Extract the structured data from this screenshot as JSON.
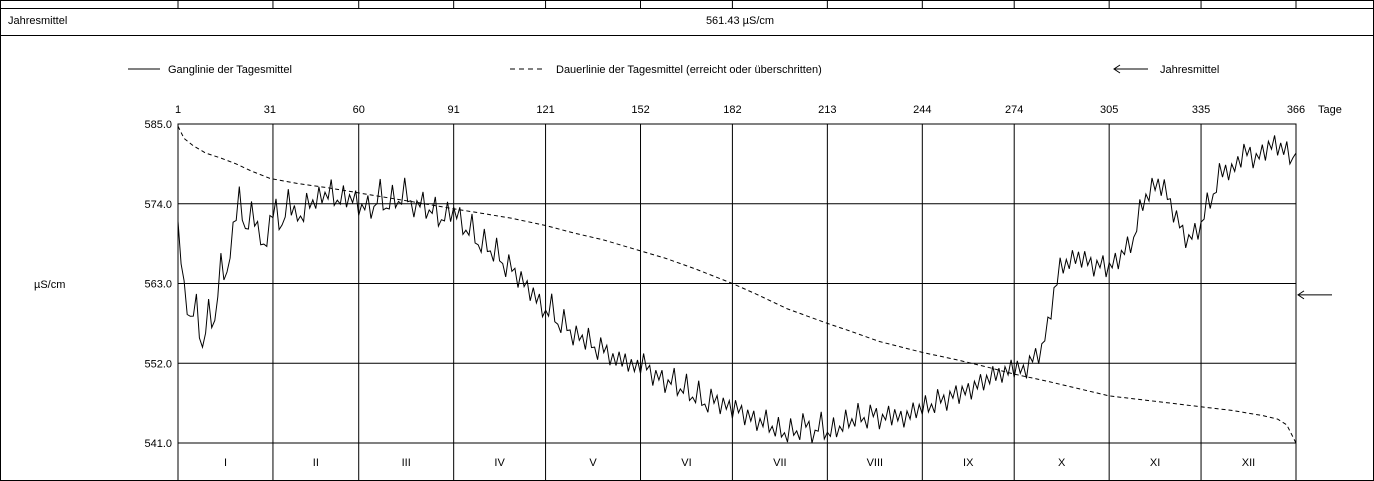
{
  "header": {
    "label": "Jahresmittel",
    "value": "561.43 µS/cm"
  },
  "legend": {
    "solid": "Ganglinie der Tagesmittel",
    "dashed": "Dauerlinie der Tagesmittel (erreicht oder überschritten)",
    "arrow": "Jahresmittel"
  },
  "chart_data": {
    "type": "line",
    "ylabel": "µS/cm",
    "xlabel_right": "Tage",
    "xlim": [
      1,
      366
    ],
    "ylim": [
      541,
      585
    ],
    "grid": true,
    "legend_position": "top",
    "x_ticks": [
      1,
      31,
      60,
      91,
      121,
      152,
      182,
      213,
      244,
      274,
      305,
      335,
      366
    ],
    "y_ticks": [
      "541.0",
      "552.0",
      "563.0",
      "574.0",
      "585.0"
    ],
    "months": [
      "I",
      "II",
      "III",
      "IV",
      "V",
      "VI",
      "VII",
      "VIII",
      "IX",
      "X",
      "XI",
      "XII"
    ],
    "month_starts": [
      1,
      32,
      60,
      91,
      121,
      152,
      182,
      213,
      244,
      274,
      305,
      335,
      366
    ],
    "annual_mean": 561.43,
    "series": [
      {
        "name": "Ganglinie der Tagesmittel",
        "style": "solid",
        "x": [
          1,
          3,
          5,
          7,
          9,
          11,
          13,
          15,
          17,
          19,
          21,
          23,
          25,
          27,
          29,
          31,
          33,
          35,
          37,
          39,
          41,
          43,
          45,
          47,
          49,
          51,
          53,
          55,
          57,
          59,
          61,
          63,
          65,
          67,
          69,
          71,
          73,
          75,
          77,
          79,
          81,
          83,
          85,
          87,
          89,
          91,
          93,
          95,
          97,
          99,
          101,
          103,
          105,
          107,
          109,
          111,
          113,
          115,
          117,
          119,
          121,
          123,
          125,
          127,
          129,
          131,
          133,
          135,
          137,
          139,
          141,
          143,
          145,
          147,
          149,
          151,
          153,
          155,
          157,
          159,
          161,
          163,
          165,
          167,
          169,
          171,
          173,
          175,
          177,
          179,
          181,
          183,
          185,
          187,
          189,
          191,
          193,
          195,
          197,
          199,
          201,
          203,
          205,
          207,
          209,
          211,
          213,
          215,
          217,
          219,
          221,
          223,
          225,
          227,
          229,
          231,
          233,
          235,
          237,
          239,
          241,
          243,
          245,
          247,
          249,
          251,
          253,
          255,
          257,
          259,
          261,
          263,
          265,
          267,
          269,
          271,
          273,
          275,
          277,
          279,
          281,
          283,
          285,
          287,
          289,
          291,
          293,
          295,
          297,
          299,
          301,
          303,
          305,
          307,
          309,
          311,
          313,
          315,
          317,
          319,
          321,
          323,
          325,
          327,
          329,
          331,
          333,
          335,
          337,
          339,
          341,
          343,
          345,
          347,
          349,
          351,
          353,
          355,
          357,
          359,
          361,
          363,
          365,
          366
        ],
        "values": [
          570,
          563,
          557,
          561,
          553,
          560,
          557,
          566,
          564,
          570,
          576,
          569,
          574,
          570,
          568,
          571,
          574,
          570,
          575,
          573,
          571,
          575,
          573,
          576,
          574,
          577,
          573,
          576,
          574,
          575,
          573,
          574,
          573,
          576,
          573,
          575,
          574,
          576,
          574,
          573,
          575,
          572,
          574,
          571,
          573,
          573,
          572,
          570,
          571,
          568,
          569,
          567,
          568,
          565,
          566,
          564,
          564,
          562,
          562,
          560,
          559,
          560,
          557,
          558,
          556,
          556,
          555,
          556,
          553,
          555,
          553,
          553,
          552,
          553,
          551,
          552,
          552,
          551,
          550,
          550,
          549,
          550,
          548,
          549,
          547,
          548,
          546,
          547,
          547,
          546,
          546,
          546,
          545,
          545,
          544,
          544,
          544,
          543,
          543,
          542,
          543,
          542,
          544,
          543,
          542,
          544,
          542,
          543,
          543,
          544,
          544,
          545,
          544,
          545,
          545,
          544,
          545,
          545,
          544,
          545,
          545,
          546,
          546,
          546,
          547,
          547,
          547,
          548,
          548,
          548,
          549,
          549,
          550,
          550,
          551,
          550,
          552,
          551,
          551,
          552,
          553,
          554,
          557,
          562,
          565,
          566,
          566,
          567,
          566,
          566,
          565,
          566,
          565,
          566,
          567,
          568,
          569,
          573,
          575,
          576,
          577,
          576,
          574,
          572,
          570,
          569,
          570,
          571,
          574,
          575,
          578,
          579,
          578,
          580,
          581,
          581,
          580,
          581,
          582,
          582,
          582,
          581,
          580,
          581
        ],
        "color": "#000000"
      },
      {
        "name": "Dauerlinie der Tagesmittel (erreicht oder überschritten)",
        "style": "dashed",
        "x": [
          1,
          3,
          6,
          10,
          15,
          20,
          25,
          31,
          40,
          50,
          60,
          70,
          80,
          91,
          100,
          110,
          121,
          130,
          140,
          152,
          160,
          170,
          182,
          190,
          200,
          213,
          220,
          230,
          244,
          255,
          265,
          274,
          285,
          295,
          305,
          315,
          325,
          335,
          345,
          355,
          360,
          363,
          366
        ],
        "values": [
          584.7,
          583,
          582,
          581,
          580.3,
          579.5,
          578.5,
          577.5,
          576.8,
          576.2,
          575.5,
          574.8,
          574.1,
          573.3,
          572.7,
          572,
          571,
          570,
          569,
          567.5,
          566.5,
          565,
          563,
          561.5,
          559.5,
          557.5,
          556.5,
          555,
          553.5,
          552.5,
          551.5,
          550.5,
          549.5,
          548.5,
          547.5,
          547,
          546.5,
          546,
          545.5,
          544.8,
          544.3,
          543.5,
          541
        ],
        "color": "#000000"
      }
    ]
  }
}
